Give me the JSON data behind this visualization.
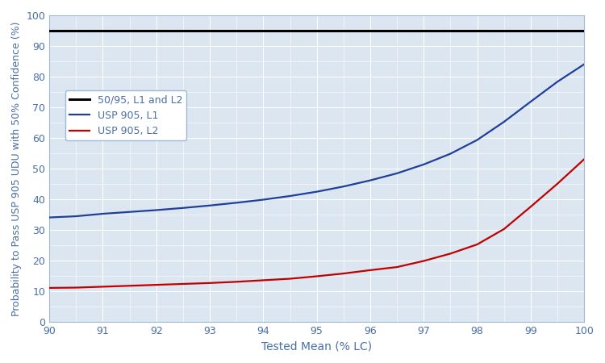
{
  "title": "",
  "xlabel": "Tested Mean (% LC)",
  "ylabel": "Probability to Pass USP 905 UDU with 50% Confidence (%)",
  "xlim": [
    90,
    100
  ],
  "ylim": [
    0,
    100
  ],
  "xticks": [
    90,
    91,
    92,
    93,
    94,
    95,
    96,
    97,
    98,
    99,
    100
  ],
  "yticks": [
    0,
    10,
    20,
    30,
    40,
    50,
    60,
    70,
    80,
    90,
    100
  ],
  "black_line_y": 95,
  "black_line_label": "50/95, L1 and L2",
  "blue_label": "USP 905, L1",
  "red_label": "USP 905, L2",
  "blue_color": "#1F3F99",
  "red_color": "#C00000",
  "black_color": "#000000",
  "plot_bg_color": "#dce6f1",
  "fig_bg_color": "#ffffff",
  "text_color": "#4472c4",
  "grid_color": "#ffffff",
  "tick_color": "#4a6fa5",
  "label_color": "#4a6fa5",
  "spine_color": "#9db8d9",
  "x_data": [
    90,
    90.5,
    91,
    91.5,
    92,
    92.5,
    93,
    93.5,
    94,
    94.5,
    95,
    95.5,
    96,
    96.5,
    97,
    97.5,
    98,
    98.5,
    99,
    99.5,
    100
  ],
  "blue_y": [
    34.0,
    34.4,
    35.2,
    35.8,
    36.4,
    37.1,
    37.9,
    38.8,
    39.8,
    41.0,
    42.4,
    44.1,
    46.1,
    48.4,
    51.3,
    54.8,
    59.3,
    65.2,
    71.8,
    78.3,
    84.0
  ],
  "red_y": [
    11.0,
    11.1,
    11.4,
    11.7,
    12.0,
    12.3,
    12.6,
    13.0,
    13.5,
    14.0,
    14.8,
    15.7,
    16.8,
    17.8,
    19.8,
    22.2,
    25.2,
    30.2,
    37.5,
    45.0,
    53.0
  ],
  "legend_fontsize": 9,
  "axis_fontsize": 9,
  "xlabel_fontsize": 10
}
